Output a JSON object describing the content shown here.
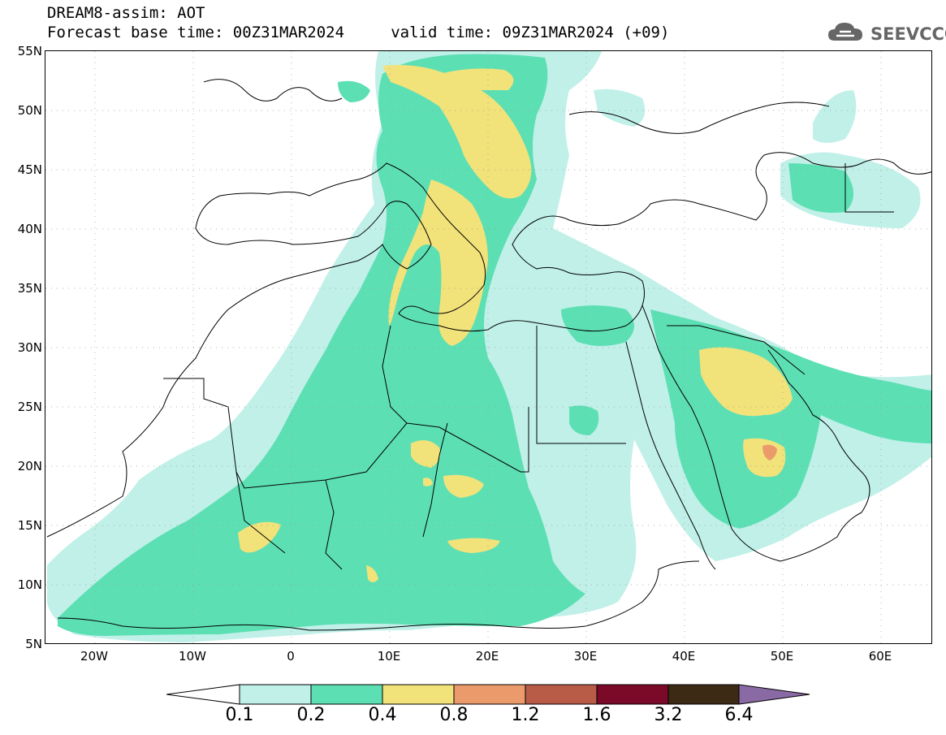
{
  "header": {
    "title_line1": "DREAM8-assim: AOT",
    "title_line2": "Forecast base time: 00Z31MAR2024     valid time: 09Z31MAR2024 (+09)",
    "logo_text": "SEEVCCC"
  },
  "map": {
    "lat_labels": [
      "55N",
      "50N",
      "45N",
      "40N",
      "35N",
      "30N",
      "25N",
      "20N",
      "15N",
      "10N",
      "5N"
    ],
    "lon_labels": [
      "20W",
      "10W",
      "0",
      "10E",
      "20E",
      "30E",
      "40E",
      "50E",
      "60E"
    ],
    "coastline_color": "#000000",
    "background_color": "#ffffff"
  },
  "legend": {
    "thresholds": [
      "0.1",
      "0.2",
      "0.4",
      "0.8",
      "1.2",
      "1.6",
      "3.2",
      "6.4"
    ],
    "colors": [
      "#ffffff",
      "#c0f0e8",
      "#5ddfb4",
      "#f2e27a",
      "#eb9a6c",
      "#b85c48",
      "#7a0a28",
      "#3c2a14",
      "#8a6aa4"
    ]
  }
}
